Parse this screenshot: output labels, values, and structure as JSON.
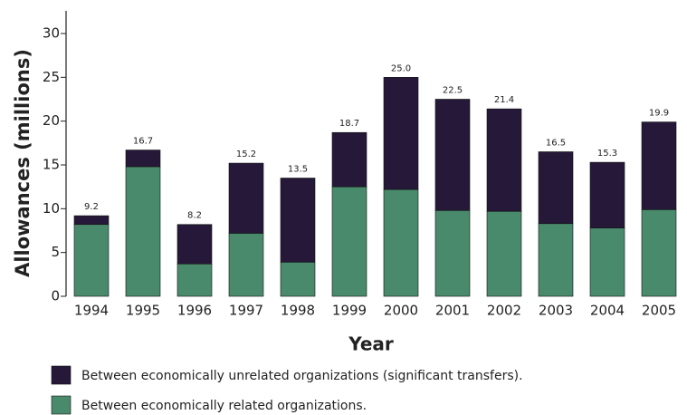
{
  "chart_data": {
    "type": "stacked-bar",
    "x_label": "Year",
    "y_label": "Allowances (millions)",
    "categories": [
      "1994",
      "1995",
      "1996",
      "1997",
      "1998",
      "1999",
      "2000",
      "2001",
      "2002",
      "2003",
      "2004",
      "2005"
    ],
    "series": [
      {
        "name": "Between economically unrelated organizations (significant transfers).",
        "color": "#251838",
        "values": [
          1.0,
          1.9,
          4.5,
          8.0,
          9.6,
          6.2,
          12.8,
          12.7,
          11.7,
          8.2,
          7.5,
          10.0
        ]
      },
      {
        "name": "Between economically related organizations.",
        "color": "#4a8a6c",
        "values": [
          8.2,
          14.8,
          3.7,
          7.2,
          3.9,
          12.5,
          12.2,
          9.8,
          9.7,
          8.3,
          7.8,
          9.9
        ]
      }
    ],
    "totals": [
      9.2,
      16.7,
      8.2,
      15.2,
      13.5,
      18.7,
      25,
      22.5,
      21.4,
      16.5,
      15.3,
      19.9
    ],
    "total_labels": [
      "9.2",
      "16.7",
      "8.2",
      "15.2",
      "13.5",
      "18.7",
      "25.0",
      "22.5",
      "21.4",
      "16.5",
      "15.3",
      "19.9"
    ],
    "ylim": [
      0,
      30
    ],
    "yticks": [
      0,
      5,
      10,
      15,
      20,
      25,
      30
    ]
  }
}
